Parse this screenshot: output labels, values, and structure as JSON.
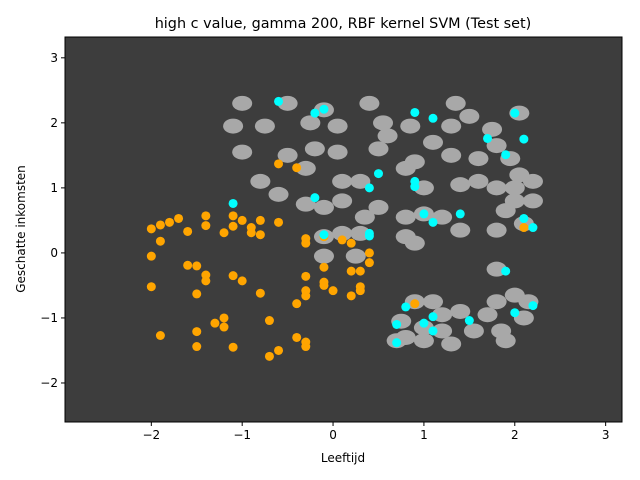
{
  "chart_data": {
    "type": "scatter",
    "title": "high c value, gamma 200, RBF kernel SVM (Test set)",
    "xlabel": "Leeftijd",
    "ylabel": "Geschatte inkomsten",
    "xlim": [
      -2.95,
      3.18
    ],
    "ylim": [
      -2.6,
      3.32
    ],
    "xticks": [
      -2,
      -1,
      0,
      1,
      2,
      3
    ],
    "xtick_labels": [
      "−2",
      "−1",
      "0",
      "1",
      "2",
      "3"
    ],
    "yticks": [
      -2,
      -1,
      0,
      1,
      2,
      3
    ],
    "ytick_labels": [
      "−2",
      "−1",
      "0",
      "1",
      "2",
      "3"
    ],
    "grid": false,
    "colors": {
      "background_region": "#3d3d3d",
      "class1_region": "#a8a8a8",
      "class0_points": "#ffa500",
      "class1_points": "#00ffff"
    },
    "decision_region_blobs": [
      [
        -1.0,
        2.3
      ],
      [
        -0.5,
        2.3
      ],
      [
        -0.1,
        2.2
      ],
      [
        0.4,
        2.3
      ],
      [
        -1.1,
        1.95
      ],
      [
        -0.75,
        1.95
      ],
      [
        -0.25,
        2.0
      ],
      [
        0.05,
        1.95
      ],
      [
        -0.2,
        1.6
      ],
      [
        0.05,
        1.55
      ],
      [
        -1.0,
        1.55
      ],
      [
        -0.5,
        1.5
      ],
      [
        -0.3,
        1.3
      ],
      [
        0.1,
        1.1
      ],
      [
        0.3,
        1.1
      ],
      [
        -0.8,
        1.1
      ],
      [
        -0.6,
        0.9
      ],
      [
        -0.3,
        0.75
      ],
      [
        -0.1,
        0.7
      ],
      [
        0.1,
        0.8
      ],
      [
        0.35,
        0.55
      ],
      [
        0.5,
        0.7
      ],
      [
        0.3,
        0.3
      ],
      [
        -0.1,
        0.25
      ],
      [
        0.1,
        0.3
      ],
      [
        0.55,
        2.0
      ],
      [
        0.85,
        1.95
      ],
      [
        0.5,
        1.6
      ],
      [
        0.6,
        1.8
      ],
      [
        0.9,
        1.4
      ],
      [
        0.8,
        1.3
      ],
      [
        1.0,
        1.0
      ],
      [
        1.3,
        1.95
      ],
      [
        1.35,
        2.3
      ],
      [
        1.5,
        2.1
      ],
      [
        1.1,
        1.7
      ],
      [
        1.3,
        1.5
      ],
      [
        1.6,
        1.45
      ],
      [
        1.4,
        1.05
      ],
      [
        1.6,
        1.1
      ],
      [
        1.8,
        1.0
      ],
      [
        2.0,
        1.0
      ],
      [
        2.2,
        1.1
      ],
      [
        2.0,
        0.8
      ],
      [
        2.2,
        0.8
      ],
      [
        1.9,
        0.65
      ],
      [
        2.05,
        2.15
      ],
      [
        1.75,
        1.9
      ],
      [
        1.8,
        1.65
      ],
      [
        1.95,
        1.45
      ],
      [
        2.05,
        1.2
      ],
      [
        0.8,
        0.55
      ],
      [
        1.2,
        0.55
      ],
      [
        1.0,
        0.6
      ],
      [
        1.4,
        0.35
      ],
      [
        2.1,
        0.45
      ],
      [
        1.8,
        0.35
      ],
      [
        0.8,
        0.25
      ],
      [
        0.9,
        0.15
      ],
      [
        -0.1,
        -0.05
      ],
      [
        0.25,
        -0.05
      ],
      [
        1.8,
        -0.25
      ],
      [
        2.0,
        -0.65
      ],
      [
        2.15,
        -0.75
      ],
      [
        2.1,
        -1.0
      ],
      [
        1.8,
        -0.75
      ],
      [
        1.7,
        -0.95
      ],
      [
        1.4,
        -0.9
      ],
      [
        1.2,
        -0.95
      ],
      [
        1.1,
        -0.75
      ],
      [
        0.9,
        -0.75
      ],
      [
        0.75,
        -1.05
      ],
      [
        0.8,
        -1.3
      ],
      [
        1.0,
        -1.15
      ],
      [
        1.2,
        -1.2
      ],
      [
        1.0,
        -1.35
      ],
      [
        1.3,
        -1.4
      ],
      [
        1.55,
        -1.2
      ],
      [
        1.85,
        -1.2
      ],
      [
        0.7,
        -1.35
      ],
      [
        1.9,
        -1.35
      ]
    ],
    "series": [
      {
        "color": "#ffa500",
        "points": [
          [
            -2.0,
            0.37
          ],
          [
            -1.9,
            0.43
          ],
          [
            -1.8,
            0.47
          ],
          [
            -1.7,
            0.53
          ],
          [
            -1.6,
            0.33
          ],
          [
            -1.4,
            0.57
          ],
          [
            -1.4,
            0.42
          ],
          [
            -1.2,
            0.31
          ],
          [
            -1.1,
            0.57
          ],
          [
            -1.1,
            0.41
          ],
          [
            -1.0,
            0.5
          ],
          [
            -0.9,
            0.39
          ],
          [
            -0.9,
            0.31
          ],
          [
            -0.8,
            0.5
          ],
          [
            -0.8,
            0.28
          ],
          [
            -0.6,
            0.47
          ],
          [
            -2.0,
            -0.05
          ],
          [
            -1.9,
            0.18
          ],
          [
            -1.6,
            -0.19
          ],
          [
            -1.5,
            -0.2
          ],
          [
            -1.4,
            -0.34
          ],
          [
            -1.4,
            -0.43
          ],
          [
            -1.1,
            -0.35
          ],
          [
            -1.0,
            -0.43
          ],
          [
            -2.0,
            -0.52
          ],
          [
            -1.5,
            -0.63
          ],
          [
            -0.8,
            -0.62
          ],
          [
            -1.9,
            -1.27
          ],
          [
            -1.5,
            -1.21
          ],
          [
            -1.3,
            -1.08
          ],
          [
            -1.2,
            -1.0
          ],
          [
            -1.2,
            -1.14
          ],
          [
            -0.7,
            -1.04
          ],
          [
            -1.5,
            -1.44
          ],
          [
            -1.1,
            -1.45
          ],
          [
            -0.7,
            -1.59
          ],
          [
            -0.6,
            -1.5
          ],
          [
            -0.4,
            -1.3
          ],
          [
            -0.3,
            -1.37
          ],
          [
            -0.3,
            -1.44
          ],
          [
            -0.6,
            1.37
          ],
          [
            -0.4,
            1.31
          ],
          [
            -0.3,
            0.22
          ],
          [
            -0.3,
            0.15
          ],
          [
            -0.1,
            0.25
          ],
          [
            0.1,
            0.2
          ],
          [
            0.2,
            0.15
          ],
          [
            0.4,
            0.0
          ],
          [
            0.4,
            -0.15
          ],
          [
            -0.1,
            -0.22
          ],
          [
            0.2,
            -0.28
          ],
          [
            0.3,
            -0.28
          ],
          [
            -0.3,
            -0.36
          ],
          [
            -0.1,
            -0.45
          ],
          [
            -0.1,
            -0.5
          ],
          [
            0.0,
            -0.58
          ],
          [
            -0.3,
            -0.58
          ],
          [
            -0.3,
            -0.66
          ],
          [
            -0.4,
            -0.78
          ],
          [
            0.3,
            -0.52
          ],
          [
            0.3,
            -0.58
          ],
          [
            0.2,
            -0.66
          ],
          [
            0.9,
            -0.78
          ],
          [
            2.1,
            0.39
          ]
        ]
      },
      {
        "color": "#00ffff",
        "points": [
          [
            -0.6,
            2.33
          ],
          [
            -0.2,
            2.15
          ],
          [
            -0.1,
            2.21
          ],
          [
            0.9,
            2.16
          ],
          [
            1.1,
            2.07
          ],
          [
            2.0,
            2.15
          ],
          [
            1.7,
            1.76
          ],
          [
            2.1,
            1.75
          ],
          [
            1.9,
            1.51
          ],
          [
            0.5,
            1.22
          ],
          [
            0.4,
            1.0
          ],
          [
            0.9,
            1.1
          ],
          [
            0.9,
            1.02
          ],
          [
            -1.1,
            0.76
          ],
          [
            -0.2,
            0.85
          ],
          [
            1.0,
            0.6
          ],
          [
            1.1,
            0.47
          ],
          [
            1.4,
            0.6
          ],
          [
            2.1,
            0.53
          ],
          [
            2.2,
            0.39
          ],
          [
            -0.1,
            0.28
          ],
          [
            0.4,
            0.3
          ],
          [
            0.4,
            0.26
          ],
          [
            1.9,
            -0.28
          ],
          [
            0.8,
            -0.83
          ],
          [
            1.1,
            -0.98
          ],
          [
            1.0,
            -1.08
          ],
          [
            0.7,
            -1.1
          ],
          [
            1.1,
            -1.2
          ],
          [
            0.7,
            -1.38
          ],
          [
            1.5,
            -1.04
          ],
          [
            2.0,
            -0.92
          ],
          [
            2.2,
            -0.81
          ]
        ]
      }
    ]
  }
}
